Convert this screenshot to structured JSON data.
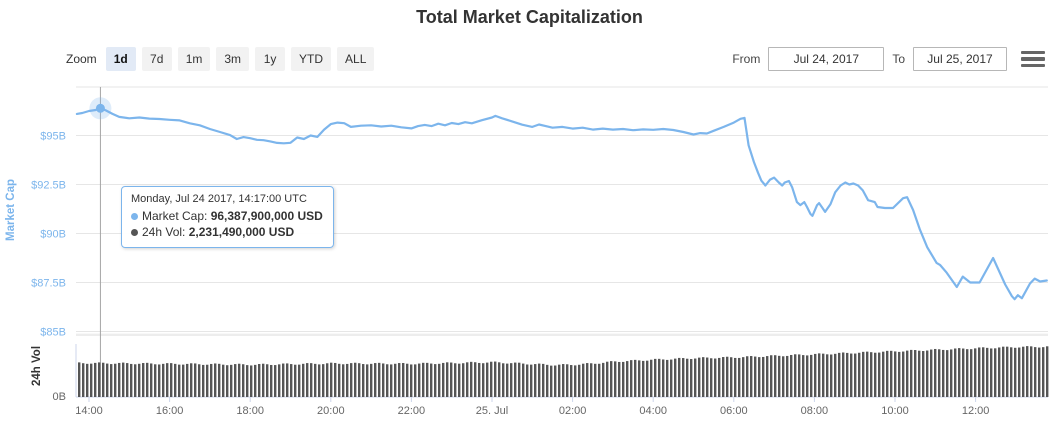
{
  "colors": {
    "accent": "#7cb5ec",
    "grid": "#e6e6e6",
    "axis_line": "#ccd6eb",
    "bar": "#555555",
    "tick_label": "#666666",
    "text": "#333333",
    "crosshair": "#a5a5a5",
    "pane_separator": "#ededed"
  },
  "toolbar": {
    "zoom_label": "Zoom",
    "zoom_buttons": [
      {
        "label": "1d",
        "selected": true
      },
      {
        "label": "7d",
        "selected": false
      },
      {
        "label": "1m",
        "selected": false
      },
      {
        "label": "3m",
        "selected": false
      },
      {
        "label": "1y",
        "selected": false
      },
      {
        "label": "YTD",
        "selected": false
      },
      {
        "label": "ALL",
        "selected": false
      }
    ],
    "from_label": "From",
    "from_value": "Jul 24, 2017",
    "to_label": "To",
    "to_value": "Jul 25, 2017",
    "menu_icon": "hamburger-menu-icon"
  },
  "tooltip": {
    "heading": "Monday, Jul 24 2017, 14:17:00 UTC",
    "time": "24 14:17",
    "marker_value_billion_usd": 96.3879,
    "rows": [
      {
        "label": "Market Cap:",
        "value": "96,387,900,000 USD",
        "color": "#7cb5ec"
      },
      {
        "label": "24h Vol:",
        "value": "2,231,490,000 USD",
        "color": "#555555"
      }
    ]
  },
  "chart_data": {
    "type": "line",
    "title": "Total Market Capitalization",
    "x_axis": {
      "type": "datetime",
      "range": "Jul 24 2017 13:42 UTC to Jul 25 2017 13:46 UTC",
      "tick_labels": [
        "14:00",
        "16:00",
        "18:00",
        "20:00",
        "22:00",
        "25. Jul",
        "02:00",
        "04:00",
        "06:00",
        "08:00",
        "10:00",
        "12:00"
      ]
    },
    "y_axes": [
      {
        "title": "Market Cap",
        "tick_labels": [
          "$95B",
          "$92.5B",
          "$90B",
          "$87.5B",
          "$85B"
        ],
        "tick_values_billion_usd": [
          95,
          92.5,
          90,
          87.5,
          85
        ],
        "color": "#7cb5ec"
      },
      {
        "title": "24h Vol",
        "tick_labels": [
          "0B"
        ],
        "tick_values_billion_usd": [
          0
        ],
        "color": "#333333"
      }
    ],
    "series": [
      {
        "name": "Market Cap",
        "type": "line",
        "unit": "billion USD",
        "color": "#7cb5ec",
        "points": [
          [
            "24 13:42",
            96.1
          ],
          [
            "24 13:50",
            96.15
          ],
          [
            "24 14:00",
            96.25
          ],
          [
            "24 14:10",
            96.3
          ],
          [
            "24 14:17",
            96.39
          ],
          [
            "24 14:25",
            96.28
          ],
          [
            "24 14:35",
            96.1
          ],
          [
            "24 14:45",
            95.95
          ],
          [
            "24 15:00",
            95.88
          ],
          [
            "24 15:15",
            95.92
          ],
          [
            "24 15:30",
            95.86
          ],
          [
            "24 15:45",
            95.84
          ],
          [
            "24 16:00",
            95.8
          ],
          [
            "24 16:15",
            95.77
          ],
          [
            "24 16:30",
            95.62
          ],
          [
            "24 16:45",
            95.52
          ],
          [
            "24 17:00",
            95.33
          ],
          [
            "24 17:15",
            95.18
          ],
          [
            "24 17:30",
            95.02
          ],
          [
            "24 17:40",
            94.82
          ],
          [
            "24 17:50",
            94.92
          ],
          [
            "24 18:00",
            94.86
          ],
          [
            "24 18:10",
            94.78
          ],
          [
            "24 18:20",
            94.76
          ],
          [
            "24 18:30",
            94.7
          ],
          [
            "24 18:40",
            94.62
          ],
          [
            "24 18:50",
            94.6
          ],
          [
            "24 19:00",
            94.63
          ],
          [
            "24 19:10",
            94.9
          ],
          [
            "24 19:20",
            94.82
          ],
          [
            "24 19:30",
            95.0
          ],
          [
            "24 19:40",
            94.93
          ],
          [
            "24 19:50",
            95.3
          ],
          [
            "24 20:00",
            95.58
          ],
          [
            "24 20:10",
            95.66
          ],
          [
            "24 20:20",
            95.63
          ],
          [
            "24 20:30",
            95.44
          ],
          [
            "24 20:45",
            95.5
          ],
          [
            "24 21:00",
            95.52
          ],
          [
            "24 21:15",
            95.46
          ],
          [
            "24 21:30",
            95.5
          ],
          [
            "24 21:45",
            95.42
          ],
          [
            "24 22:00",
            95.36
          ],
          [
            "24 22:10",
            95.48
          ],
          [
            "24 22:20",
            95.54
          ],
          [
            "24 22:30",
            95.48
          ],
          [
            "24 22:40",
            95.6
          ],
          [
            "24 22:50",
            95.52
          ],
          [
            "24 23:00",
            95.64
          ],
          [
            "24 23:10",
            95.58
          ],
          [
            "24 23:20",
            95.68
          ],
          [
            "24 23:30",
            95.62
          ],
          [
            "24 23:45",
            95.78
          ],
          [
            "25 00:00",
            95.92
          ],
          [
            "25 00:05",
            96.0
          ],
          [
            "25 00:15",
            95.88
          ],
          [
            "25 00:30",
            95.72
          ],
          [
            "25 00:45",
            95.55
          ],
          [
            "25 01:00",
            95.44
          ],
          [
            "25 01:10",
            95.56
          ],
          [
            "25 01:20",
            95.48
          ],
          [
            "25 01:30",
            95.4
          ],
          [
            "25 01:45",
            95.44
          ],
          [
            "25 02:00",
            95.35
          ],
          [
            "25 02:15",
            95.4
          ],
          [
            "25 02:30",
            95.3
          ],
          [
            "25 02:45",
            95.35
          ],
          [
            "25 03:00",
            95.3
          ],
          [
            "25 03:15",
            95.33
          ],
          [
            "25 03:30",
            95.27
          ],
          [
            "25 03:45",
            95.31
          ],
          [
            "25 04:00",
            95.29
          ],
          [
            "25 04:15",
            95.33
          ],
          [
            "25 04:30",
            95.28
          ],
          [
            "25 04:45",
            95.18
          ],
          [
            "25 05:00",
            95.05
          ],
          [
            "25 05:10",
            95.12
          ],
          [
            "25 05:20",
            95.1
          ],
          [
            "25 05:30",
            95.24
          ],
          [
            "25 05:45",
            95.44
          ],
          [
            "25 06:00",
            95.66
          ],
          [
            "25 06:10",
            95.85
          ],
          [
            "25 06:16",
            95.9
          ],
          [
            "25 06:22",
            94.5
          ],
          [
            "25 06:30",
            93.65
          ],
          [
            "25 06:36",
            93.1
          ],
          [
            "25 06:41",
            92.7
          ],
          [
            "25 06:47",
            92.45
          ],
          [
            "25 06:54",
            92.75
          ],
          [
            "25 07:00",
            92.85
          ],
          [
            "25 07:07",
            92.6
          ],
          [
            "25 07:12",
            92.45
          ],
          [
            "25 07:16",
            92.6
          ],
          [
            "25 07:22",
            92.68
          ],
          [
            "25 07:27",
            92.35
          ],
          [
            "25 07:34",
            91.6
          ],
          [
            "25 07:39",
            91.45
          ],
          [
            "25 07:45",
            91.6
          ],
          [
            "25 07:49",
            91.35
          ],
          [
            "25 07:54",
            91.0
          ],
          [
            "25 07:57",
            90.9
          ],
          [
            "25 08:04",
            91.45
          ],
          [
            "25 08:07",
            91.55
          ],
          [
            "25 08:12",
            91.3
          ],
          [
            "25 08:16",
            91.1
          ],
          [
            "25 08:24",
            91.5
          ],
          [
            "25 08:31",
            92.1
          ],
          [
            "25 08:39",
            92.45
          ],
          [
            "25 08:46",
            92.6
          ],
          [
            "25 08:52",
            92.5
          ],
          [
            "25 08:58",
            92.55
          ],
          [
            "25 09:05",
            92.45
          ],
          [
            "25 09:12",
            92.2
          ],
          [
            "25 09:20",
            91.7
          ],
          [
            "25 09:30",
            91.6
          ],
          [
            "25 09:34",
            91.35
          ],
          [
            "25 09:45",
            91.3
          ],
          [
            "25 09:57",
            91.3
          ],
          [
            "25 10:12",
            91.8
          ],
          [
            "25 10:18",
            91.85
          ],
          [
            "25 10:27",
            91.2
          ],
          [
            "25 10:37",
            90.2
          ],
          [
            "25 10:48",
            89.3
          ],
          [
            "25 10:55",
            88.9
          ],
          [
            "25 11:02",
            88.5
          ],
          [
            "25 11:07",
            88.4
          ],
          [
            "25 11:17",
            88.0
          ],
          [
            "25 11:32",
            87.27
          ],
          [
            "25 11:41",
            87.8
          ],
          [
            "25 11:52",
            87.5
          ],
          [
            "25 12:06",
            87.5
          ],
          [
            "25 12:26",
            88.75
          ],
          [
            "25 12:44",
            87.4
          ],
          [
            "25 12:54",
            86.8
          ],
          [
            "25 12:58",
            86.65
          ],
          [
            "25 13:03",
            86.85
          ],
          [
            "25 13:09",
            86.7
          ],
          [
            "25 13:21",
            87.45
          ],
          [
            "25 13:28",
            87.7
          ],
          [
            "25 13:36",
            87.55
          ],
          [
            "25 13:46",
            87.6
          ]
        ]
      },
      {
        "name": "24h Vol",
        "type": "bar",
        "unit": "billion USD",
        "color": "#555555",
        "points": [
          [
            "24 13:42",
            2.23
          ],
          [
            "24 15:00",
            2.2
          ],
          [
            "24 17:00",
            2.15
          ],
          [
            "24 18:00",
            2.12
          ],
          [
            "24 20:00",
            2.2
          ],
          [
            "24 22:00",
            2.18
          ],
          [
            "25 00:00",
            2.28
          ],
          [
            "25 00:40",
            2.2
          ],
          [
            "25 01:30",
            2.1
          ],
          [
            "25 02:00",
            2.12
          ],
          [
            "25 02:30",
            2.2
          ],
          [
            "25 03:00",
            2.32
          ],
          [
            "25 04:00",
            2.45
          ],
          [
            "25 05:00",
            2.55
          ],
          [
            "25 06:00",
            2.6
          ],
          [
            "25 07:00",
            2.7
          ],
          [
            "25 08:00",
            2.8
          ],
          [
            "25 09:00",
            2.9
          ],
          [
            "25 10:00",
            3.0
          ],
          [
            "25 11:00",
            3.1
          ],
          [
            "25 12:00",
            3.2
          ],
          [
            "25 13:00",
            3.28
          ],
          [
            "25 13:46",
            3.3
          ]
        ]
      }
    ]
  }
}
